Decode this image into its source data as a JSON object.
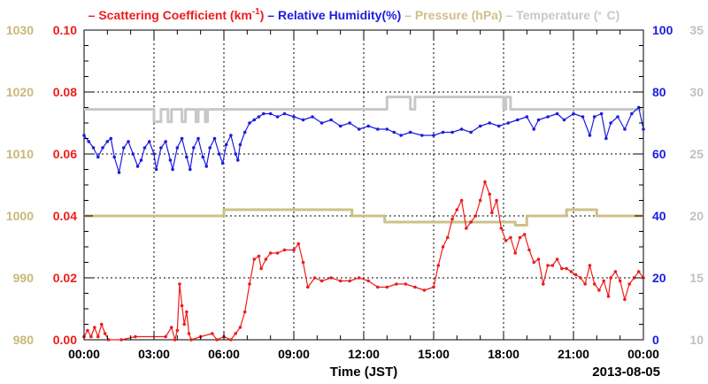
{
  "chart_data": {
    "type": "line",
    "legend": {
      "placement": "top",
      "entries": [
        {
          "prefix": "–",
          "text": "Scattering Coefficient (km",
          "sup": "-1",
          "after": ")",
          "color": "#ee1c1c"
        },
        {
          "prefix": "–",
          "text": "Relative Humidity(%)",
          "sup": "",
          "after": "",
          "color": "#1c1ce0"
        },
        {
          "prefix": "–",
          "text": "Pressure (hPa)",
          "sup": "",
          "after": "",
          "color": "#cdc089"
        },
        {
          "prefix": "–",
          "text": "Temperature (",
          "sup": "。",
          "after": "C)",
          "color": "#c8c8c8"
        }
      ]
    },
    "xlabel": "Time (JST)",
    "date_label": "2013-08-05",
    "x_ticks": [
      "00:00",
      "03:00",
      "06:00",
      "09:00",
      "12:00",
      "15:00",
      "18:00",
      "21:00",
      "00:00"
    ],
    "xlim_hours": [
      0,
      24
    ],
    "grid": true,
    "axes": {
      "pressure": {
        "side": "left-outer",
        "ylim": [
          980,
          1030
        ],
        "ticks": [
          "980",
          "990",
          "1000",
          "1010",
          "1020",
          "1030"
        ],
        "color": "#c8b878"
      },
      "scattering": {
        "side": "left-inner",
        "ylim": [
          0,
          0.1
        ],
        "ticks": [
          "0.00",
          "0.02",
          "0.04",
          "0.06",
          "0.08",
          "0.10"
        ],
        "color": "#ee1c1c"
      },
      "humidity": {
        "side": "right-inner",
        "ylim": [
          0,
          100
        ],
        "ticks": [
          "0",
          "20",
          "40",
          "60",
          "80",
          "100"
        ],
        "color": "#1c1ce0"
      },
      "temperature": {
        "side": "right-outer",
        "ylim": [
          10,
          35
        ],
        "ticks": [
          "10",
          "15",
          "20",
          "25",
          "30",
          "35"
        ],
        "color": "#c0c0c0"
      }
    },
    "series": [
      {
        "name": "Temperature",
        "axis": "temperature",
        "color": "#c8c8c8",
        "markers": false,
        "points": [
          [
            0,
            28.6
          ],
          [
            3.0,
            28.6
          ],
          [
            3.0,
            27.6
          ],
          [
            3.3,
            27.6
          ],
          [
            3.3,
            28.6
          ],
          [
            3.6,
            28.6
          ],
          [
            3.6,
            27.6
          ],
          [
            3.75,
            27.6
          ],
          [
            3.75,
            28.6
          ],
          [
            4.2,
            28.6
          ],
          [
            4.2,
            27.6
          ],
          [
            4.35,
            27.6
          ],
          [
            4.35,
            28.6
          ],
          [
            4.8,
            28.6
          ],
          [
            4.8,
            27.6
          ],
          [
            4.9,
            27.6
          ],
          [
            4.9,
            28.6
          ],
          [
            5.2,
            28.6
          ],
          [
            5.2,
            27.6
          ],
          [
            5.3,
            27.6
          ],
          [
            5.3,
            28.6
          ],
          [
            13.0,
            28.6
          ],
          [
            13.0,
            29.6
          ],
          [
            14.0,
            29.6
          ],
          [
            14.0,
            28.6
          ],
          [
            14.2,
            28.6
          ],
          [
            14.2,
            29.6
          ],
          [
            18.0,
            29.6
          ],
          [
            18.0,
            28.6
          ],
          [
            18.1,
            28.6
          ],
          [
            18.1,
            29.6
          ],
          [
            18.3,
            29.6
          ],
          [
            18.3,
            28.6
          ],
          [
            24,
            28.6
          ]
        ]
      },
      {
        "name": "Pressure",
        "axis": "pressure",
        "color": "#cdc089",
        "markers": false,
        "points": [
          [
            0,
            1000
          ],
          [
            6.0,
            1000
          ],
          [
            6.0,
            1001
          ],
          [
            11.5,
            1001
          ],
          [
            11.5,
            1000
          ],
          [
            12.9,
            1000
          ],
          [
            12.9,
            999
          ],
          [
            18.5,
            999
          ],
          [
            18.5,
            998.5
          ],
          [
            19.0,
            998.5
          ],
          [
            19.0,
            1000
          ],
          [
            20.7,
            1000
          ],
          [
            20.7,
            1001
          ],
          [
            22.0,
            1001
          ],
          [
            22.0,
            1000
          ],
          [
            24,
            1000
          ]
        ]
      },
      {
        "name": "Relative Humidity",
        "axis": "humidity",
        "color": "#1c1ce0",
        "markers": true,
        "points": [
          [
            0.0,
            66
          ],
          [
            0.2,
            64
          ],
          [
            0.4,
            62
          ],
          [
            0.6,
            59
          ],
          [
            0.8,
            62
          ],
          [
            1.0,
            64
          ],
          [
            1.15,
            65
          ],
          [
            1.3,
            59
          ],
          [
            1.5,
            54
          ],
          [
            1.7,
            62
          ],
          [
            1.9,
            64
          ],
          [
            2.1,
            60
          ],
          [
            2.3,
            56
          ],
          [
            2.45,
            58
          ],
          [
            2.6,
            62
          ],
          [
            2.8,
            64
          ],
          [
            3.0,
            60
          ],
          [
            3.1,
            55
          ],
          [
            3.3,
            62
          ],
          [
            3.5,
            64
          ],
          [
            3.7,
            58
          ],
          [
            3.8,
            55
          ],
          [
            4.0,
            62
          ],
          [
            4.2,
            65
          ],
          [
            4.4,
            59
          ],
          [
            4.55,
            55
          ],
          [
            4.7,
            62
          ],
          [
            4.9,
            65
          ],
          [
            5.1,
            59
          ],
          [
            5.25,
            56
          ],
          [
            5.4,
            62
          ],
          [
            5.6,
            65
          ],
          [
            5.8,
            60
          ],
          [
            5.95,
            57
          ],
          [
            6.1,
            63
          ],
          [
            6.3,
            66
          ],
          [
            6.5,
            60
          ],
          [
            6.6,
            58
          ],
          [
            6.7,
            63
          ],
          [
            6.9,
            67
          ],
          [
            7.1,
            70
          ],
          [
            7.3,
            71
          ],
          [
            7.5,
            72
          ],
          [
            7.7,
            73
          ],
          [
            8.0,
            73
          ],
          [
            8.3,
            72
          ],
          [
            8.6,
            73
          ],
          [
            9.0,
            72
          ],
          [
            9.4,
            71
          ],
          [
            9.8,
            72
          ],
          [
            10.2,
            70
          ],
          [
            10.6,
            71
          ],
          [
            11.0,
            69
          ],
          [
            11.4,
            70
          ],
          [
            11.8,
            68
          ],
          [
            12.2,
            69
          ],
          [
            12.6,
            68
          ],
          [
            13.0,
            68
          ],
          [
            13.3,
            67
          ],
          [
            13.6,
            66
          ],
          [
            14.0,
            67
          ],
          [
            14.5,
            66
          ],
          [
            15.0,
            66
          ],
          [
            15.4,
            67
          ],
          [
            15.8,
            67
          ],
          [
            16.2,
            68
          ],
          [
            16.6,
            67
          ],
          [
            17.0,
            69
          ],
          [
            17.4,
            70
          ],
          [
            17.8,
            69
          ],
          [
            18.2,
            70
          ],
          [
            18.6,
            71
          ],
          [
            19.0,
            72
          ],
          [
            19.3,
            68
          ],
          [
            19.5,
            71
          ],
          [
            19.9,
            72
          ],
          [
            20.3,
            73
          ],
          [
            20.6,
            71
          ],
          [
            21.0,
            73
          ],
          [
            21.4,
            72
          ],
          [
            21.7,
            66
          ],
          [
            21.9,
            72
          ],
          [
            22.2,
            73
          ],
          [
            22.4,
            65
          ],
          [
            22.6,
            70
          ],
          [
            22.9,
            72
          ],
          [
            23.2,
            68
          ],
          [
            23.5,
            73
          ],
          [
            23.8,
            75
          ],
          [
            24.0,
            68
          ]
        ]
      },
      {
        "name": "Scattering Coefficient",
        "axis": "scattering",
        "color": "#ee1c1c",
        "markers": true,
        "points": [
          [
            0.0,
            0.001
          ],
          [
            0.15,
            0.003
          ],
          [
            0.3,
            0.001
          ],
          [
            0.45,
            0.004
          ],
          [
            0.6,
            0.001
          ],
          [
            0.75,
            0.005
          ],
          [
            0.9,
            0.002
          ],
          [
            1.05,
            0.0
          ],
          [
            1.6,
            0.0
          ],
          [
            2.2,
            0.001
          ],
          [
            3.5,
            0.001
          ],
          [
            3.75,
            0.004
          ],
          [
            3.9,
            0.0
          ],
          [
            4.0,
            0.003
          ],
          [
            4.1,
            0.018
          ],
          [
            4.2,
            0.011
          ],
          [
            4.3,
            0.005
          ],
          [
            4.4,
            0.009
          ],
          [
            4.5,
            0.002
          ],
          [
            4.6,
            0.0
          ],
          [
            5.0,
            0.001
          ],
          [
            5.5,
            0.002
          ],
          [
            5.7,
            0.0
          ],
          [
            6.0,
            0.001
          ],
          [
            6.3,
            0.0
          ],
          [
            6.5,
            0.002
          ],
          [
            6.7,
            0.004
          ],
          [
            6.9,
            0.009
          ],
          [
            7.1,
            0.018
          ],
          [
            7.3,
            0.026
          ],
          [
            7.5,
            0.027
          ],
          [
            7.6,
            0.023
          ],
          [
            7.8,
            0.026
          ],
          [
            8.0,
            0.028
          ],
          [
            8.3,
            0.028
          ],
          [
            8.6,
            0.029
          ],
          [
            9.0,
            0.029
          ],
          [
            9.2,
            0.031
          ],
          [
            9.4,
            0.025
          ],
          [
            9.6,
            0.017
          ],
          [
            9.9,
            0.02
          ],
          [
            10.2,
            0.019
          ],
          [
            10.6,
            0.02
          ],
          [
            11.0,
            0.019
          ],
          [
            11.4,
            0.019
          ],
          [
            11.8,
            0.02
          ],
          [
            12.2,
            0.019
          ],
          [
            12.6,
            0.017
          ],
          [
            13.0,
            0.017
          ],
          [
            13.4,
            0.018
          ],
          [
            13.8,
            0.018
          ],
          [
            14.2,
            0.017
          ],
          [
            14.6,
            0.016
          ],
          [
            15.0,
            0.017
          ],
          [
            15.2,
            0.024
          ],
          [
            15.4,
            0.03
          ],
          [
            15.6,
            0.033
          ],
          [
            15.8,
            0.039
          ],
          [
            16.0,
            0.042
          ],
          [
            16.2,
            0.045
          ],
          [
            16.4,
            0.036
          ],
          [
            16.6,
            0.038
          ],
          [
            16.8,
            0.04
          ],
          [
            17.0,
            0.045
          ],
          [
            17.2,
            0.051
          ],
          [
            17.4,
            0.047
          ],
          [
            17.5,
            0.041
          ],
          [
            17.7,
            0.045
          ],
          [
            17.9,
            0.036
          ],
          [
            18.1,
            0.032
          ],
          [
            18.3,
            0.033
          ],
          [
            18.5,
            0.028
          ],
          [
            18.7,
            0.033
          ],
          [
            18.9,
            0.034
          ],
          [
            19.1,
            0.029
          ],
          [
            19.3,
            0.025
          ],
          [
            19.5,
            0.026
          ],
          [
            19.7,
            0.018
          ],
          [
            19.9,
            0.024
          ],
          [
            20.1,
            0.024
          ],
          [
            20.3,
            0.026
          ],
          [
            20.5,
            0.023
          ],
          [
            20.7,
            0.023
          ],
          [
            20.9,
            0.022
          ],
          [
            21.1,
            0.021
          ],
          [
            21.3,
            0.02
          ],
          [
            21.5,
            0.018
          ],
          [
            21.7,
            0.024
          ],
          [
            21.9,
            0.018
          ],
          [
            22.1,
            0.016
          ],
          [
            22.3,
            0.019
          ],
          [
            22.5,
            0.014
          ],
          [
            22.6,
            0.02
          ],
          [
            22.8,
            0.022
          ],
          [
            23.0,
            0.019
          ],
          [
            23.2,
            0.013
          ],
          [
            23.4,
            0.018
          ],
          [
            23.6,
            0.02
          ],
          [
            23.8,
            0.022
          ],
          [
            24.0,
            0.02
          ]
        ]
      }
    ]
  }
}
